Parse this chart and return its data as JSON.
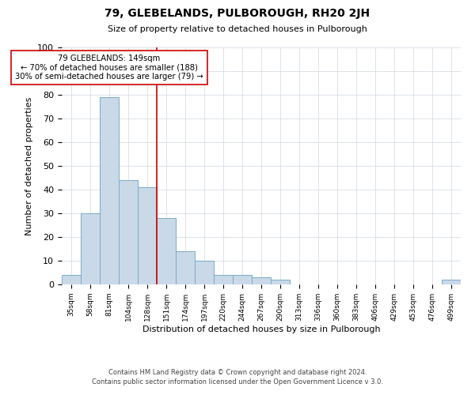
{
  "title": "79, GLEBELANDS, PULBOROUGH, RH20 2JH",
  "subtitle": "Size of property relative to detached houses in Pulborough",
  "xlabel": "Distribution of detached houses by size in Pulborough",
  "ylabel": "Number of detached properties",
  "bar_labels": [
    "35sqm",
    "58sqm",
    "81sqm",
    "104sqm",
    "128sqm",
    "151sqm",
    "174sqm",
    "197sqm",
    "220sqm",
    "244sqm",
    "267sqm",
    "290sqm",
    "313sqm",
    "336sqm",
    "360sqm",
    "383sqm",
    "406sqm",
    "429sqm",
    "453sqm",
    "476sqm",
    "499sqm"
  ],
  "bar_values": [
    4,
    30,
    79,
    44,
    41,
    28,
    14,
    10,
    4,
    4,
    3,
    2,
    0,
    0,
    0,
    0,
    0,
    0,
    0,
    0,
    2
  ],
  "bar_color": "#c9d9e8",
  "bar_edge_color": "#7aaac8",
  "property_line_x": 4.5,
  "annotation_title": "79 GLEBELANDS: 149sqm",
  "annotation_line1": "← 70% of detached houses are smaller (188)",
  "annotation_line2": "30% of semi-detached houses are larger (79) →",
  "vline_color": "#cc0000",
  "ylim": [
    0,
    100
  ],
  "footer_line1": "Contains HM Land Registry data © Crown copyright and database right 2024.",
  "footer_line2": "Contains public sector information licensed under the Open Government Licence v 3.0.",
  "background_color": "#ffffff",
  "grid_color": "#d0d8e0"
}
